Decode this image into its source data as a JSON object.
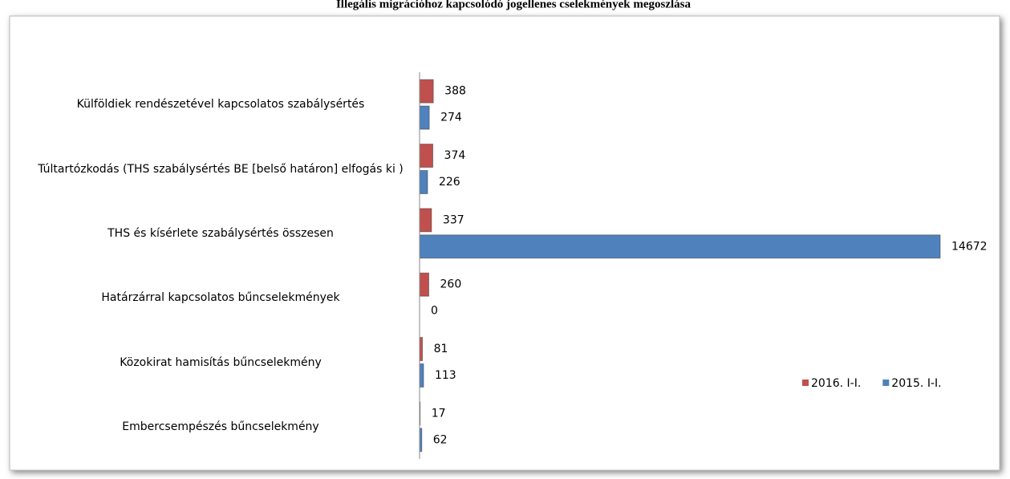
{
  "chart_data": {
    "type": "bar",
    "orientation": "horizontal",
    "title": "Illegális migrációhoz kapcsolódó jogellenes cselekmények megoszlása",
    "categories": [
      "Külföldiek rendészetével kapcsolatos szabálysértés",
      "Túltartózkodás (THS szabálysértés BE [belső határon] elfogás ki )",
      "THS és kísérlete szabálysértés összesen",
      "Határzárral kapcsolatos bűncselekmények",
      "Közokirat hamisítás bűncselekmény",
      "Embercsempészés bűncselekmény"
    ],
    "series": [
      {
        "name": "2016. I-I.",
        "color": "#c0504d",
        "values": [
          388,
          374,
          337,
          260,
          81,
          17
        ]
      },
      {
        "name": "2015. I-I.",
        "color": "#4f81bd",
        "values": [
          274,
          226,
          14672,
          0,
          113,
          62
        ]
      }
    ],
    "legend": "right"
  }
}
